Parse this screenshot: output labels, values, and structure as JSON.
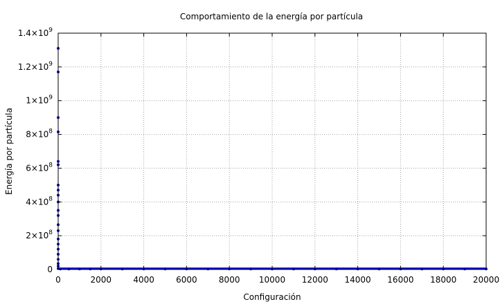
{
  "chart_data": {
    "type": "scatter",
    "title": "Comportamiento de la energía por partícula",
    "xlabel": "Configuración",
    "ylabel": "Energía por partícula",
    "xlim": [
      0,
      20000
    ],
    "ylim": [
      0,
      1400000000
    ],
    "grid": true,
    "legend": "none",
    "x_ticks": [
      "0",
      "2000",
      "4000",
      "6000",
      "8000",
      "10000",
      "12000",
      "14000",
      "16000",
      "18000",
      "20000"
    ],
    "y_ticks": [
      {
        "value": 0,
        "mantissa": "0",
        "exp": ""
      },
      {
        "value": 200000000,
        "mantissa": "2×10",
        "exp": "8"
      },
      {
        "value": 400000000,
        "mantissa": "4×10",
        "exp": "8"
      },
      {
        "value": 600000000,
        "mantissa": "6×10",
        "exp": "8"
      },
      {
        "value": 800000000,
        "mantissa": "8×10",
        "exp": "8"
      },
      {
        "value": 1000000000,
        "mantissa": "1×10",
        "exp": "9"
      },
      {
        "value": 1200000000,
        "mantissa": "1.2×10",
        "exp": "9"
      },
      {
        "value": 1400000000,
        "mantissa": "1.4×10",
        "exp": "9"
      }
    ],
    "series": [
      {
        "color": "#0000cc",
        "points": [
          [
            0,
            1310000000
          ],
          [
            0,
            1170000000
          ],
          [
            0,
            900000000
          ],
          [
            0,
            815000000
          ],
          [
            0,
            640000000
          ],
          [
            0,
            620000000
          ],
          [
            0,
            500000000
          ],
          [
            0,
            470000000
          ],
          [
            0,
            440000000
          ],
          [
            0,
            400000000
          ],
          [
            0,
            350000000
          ],
          [
            0,
            320000000
          ],
          [
            0,
            265000000
          ],
          [
            0,
            230000000
          ],
          [
            0,
            180000000
          ],
          [
            0,
            150000000
          ],
          [
            0,
            120000000
          ],
          [
            0,
            90000000
          ],
          [
            0,
            60000000
          ],
          [
            0,
            35000000
          ],
          [
            0,
            20000000
          ],
          [
            0,
            5000000
          ],
          [
            100,
            3000000
          ],
          [
            500,
            3000000
          ],
          [
            1000,
            3000000
          ],
          [
            1500,
            3000000
          ],
          [
            2000,
            3000000
          ],
          [
            3000,
            3000000
          ],
          [
            4000,
            3000000
          ],
          [
            5000,
            3000000
          ],
          [
            6000,
            3000000
          ],
          [
            7000,
            3000000
          ],
          [
            8000,
            3000000
          ],
          [
            9000,
            3000000
          ],
          [
            10000,
            3000000
          ],
          [
            11000,
            3000000
          ],
          [
            12000,
            3000000
          ],
          [
            13000,
            3000000
          ],
          [
            14000,
            3000000
          ],
          [
            15000,
            3000000
          ],
          [
            16000,
            3000000
          ],
          [
            17000,
            3000000
          ],
          [
            18000,
            3000000
          ],
          [
            19000,
            3000000
          ],
          [
            20000,
            3000000
          ]
        ]
      }
    ]
  }
}
